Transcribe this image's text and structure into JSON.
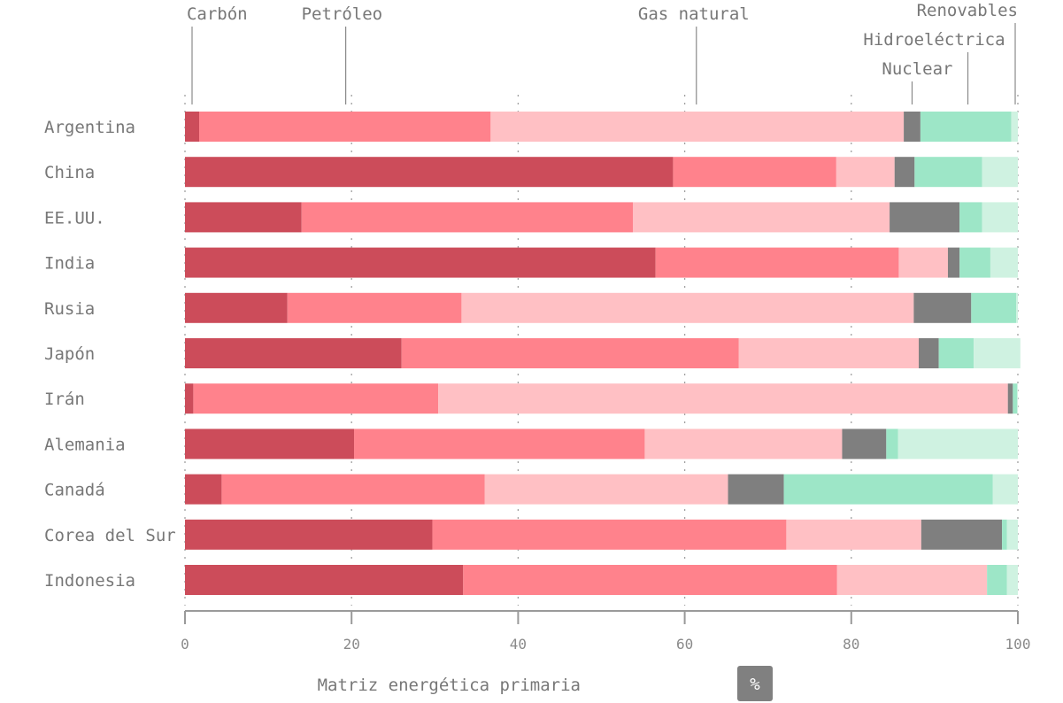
{
  "chart_data": {
    "type": "bar",
    "orientation": "horizontal",
    "stacked": true,
    "xlabel": "Matriz energética primaria",
    "unit": "%",
    "xlim": [
      0,
      100
    ],
    "xticks": [
      0,
      20,
      40,
      60,
      80,
      100
    ],
    "categories": [
      "Argentina",
      "China",
      "EE.UU.",
      "India",
      "Rusia",
      "Japón",
      "Irán",
      "Alemania",
      "Canadá",
      "Corea del Sur",
      "Indonesia"
    ],
    "series": [
      {
        "name": "Carbón",
        "color": "#cc4c5a",
        "values": [
          1.7,
          58.6,
          14.0,
          56.5,
          12.3,
          26.0,
          1.0,
          20.3,
          4.4,
          29.7,
          33.4
        ]
      },
      {
        "name": "Petróleo",
        "color": "#ff828c",
        "values": [
          35.0,
          19.6,
          39.8,
          29.2,
          20.9,
          40.5,
          29.4,
          34.9,
          31.6,
          42.5,
          44.9
        ]
      },
      {
        "name": "Gas natural",
        "color": "#ffc0c4",
        "values": [
          49.6,
          7.0,
          30.8,
          5.9,
          54.3,
          21.6,
          68.4,
          23.7,
          29.2,
          16.2,
          18.0
        ]
      },
      {
        "name": "Nuclear",
        "color": "#7f7f7f",
        "values": [
          2.0,
          2.4,
          8.4,
          1.4,
          6.9,
          2.4,
          0.6,
          5.3,
          6.7,
          9.7,
          0.0
        ]
      },
      {
        "name": "Hidroeléctrica",
        "color": "#9de6c7",
        "values": [
          10.9,
          8.1,
          2.7,
          3.7,
          5.4,
          4.2,
          0.5,
          1.4,
          25.1,
          0.6,
          2.4
        ]
      },
      {
        "name": "Renovables",
        "color": "#cff2e1",
        "values": [
          0.8,
          4.3,
          4.3,
          3.3,
          0.2,
          5.6,
          0.1,
          14.4,
          3.0,
          1.3,
          1.3
        ]
      }
    ]
  }
}
